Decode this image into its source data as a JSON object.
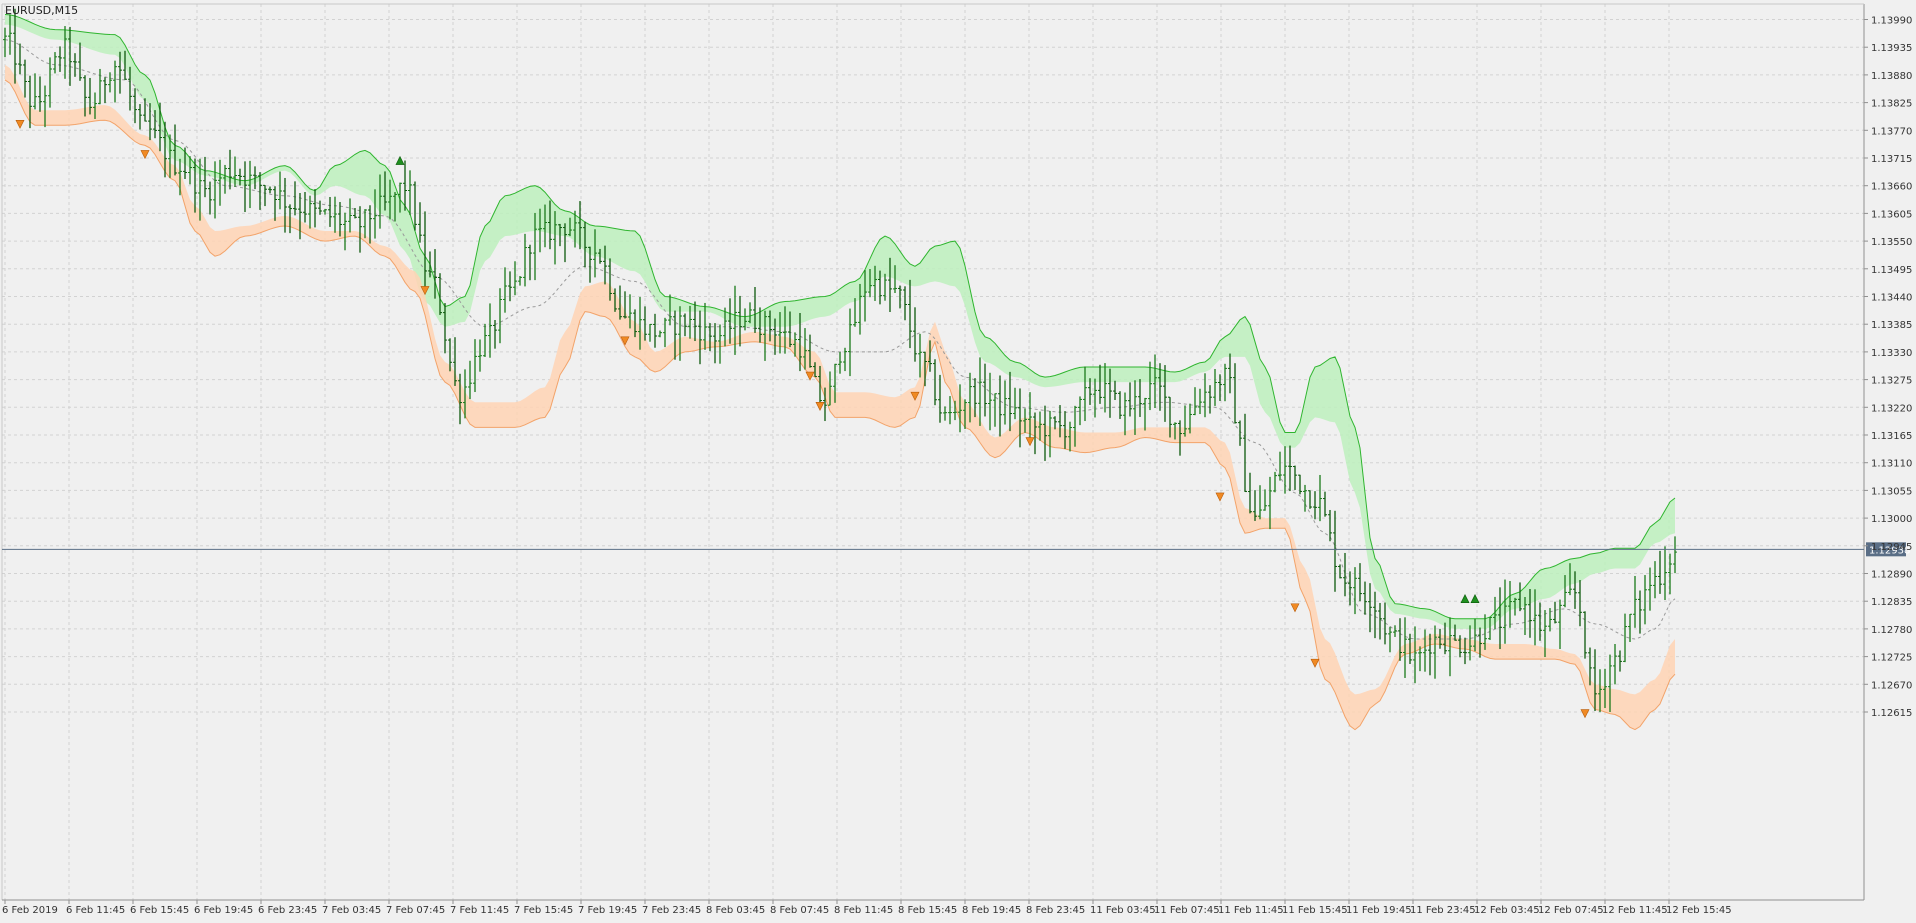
{
  "chart_data": {
    "type": "ohlc",
    "title": "EURUSD,M15",
    "price_tag": "1.12938",
    "current_price": 1.12938,
    "ylim": [
      1.1258,
      1.1401
    ],
    "y_ticks": [
      "1.13990",
      "1.13935",
      "1.13880",
      "1.13825",
      "1.13770",
      "1.13715",
      "1.13660",
      "1.13605",
      "1.13550",
      "1.13495",
      "1.13440",
      "1.13385",
      "1.13330",
      "1.13275",
      "1.13220",
      "1.13165",
      "1.13110",
      "1.13055",
      "1.13000",
      "1.12945",
      "1.12890",
      "1.12835",
      "1.12780",
      "1.12725",
      "1.12670",
      "1.12615"
    ],
    "x_ticks": [
      "6 Feb 2019",
      "6 Feb 11:45",
      "6 Feb 15:45",
      "6 Feb 19:45",
      "6 Feb 23:45",
      "7 Feb 03:45",
      "7 Feb 07:45",
      "7 Feb 11:45",
      "7 Feb 15:45",
      "7 Feb 19:45",
      "7 Feb 23:45",
      "8 Feb 03:45",
      "8 Feb 07:45",
      "8 Feb 11:45",
      "8 Feb 15:45",
      "8 Feb 19:45",
      "8 Feb 23:45",
      "11 Feb 03:45",
      "11 Feb 07:45",
      "11 Feb 11:45",
      "11 Feb 15:45",
      "11 Feb 19:45",
      "11 Feb 23:45",
      "12 Feb 03:45",
      "12 Feb 07:45",
      "12 Feb 11:45",
      "12 Feb 15:45"
    ],
    "bars_per_label": 16,
    "grid": true,
    "close_anchors": [
      [
        0,
        1.1395
      ],
      [
        6,
        1.1382
      ],
      [
        12,
        1.1393
      ],
      [
        17,
        1.1382
      ],
      [
        22,
        1.139
      ],
      [
        28,
        1.1377
      ],
      [
        35,
        1.137
      ],
      [
        40,
        1.1365
      ],
      [
        45,
        1.1369
      ],
      [
        52,
        1.1366
      ],
      [
        58,
        1.1362
      ],
      [
        64,
        1.136
      ],
      [
        70,
        1.1358
      ],
      [
        76,
        1.1362
      ],
      [
        80,
        1.1366
      ],
      [
        85,
        1.1348
      ],
      [
        91,
        1.1325
      ],
      [
        96,
        1.1335
      ],
      [
        101,
        1.1345
      ],
      [
        106,
        1.1356
      ],
      [
        112,
        1.1358
      ],
      [
        118,
        1.1353
      ],
      [
        124,
        1.134
      ],
      [
        130,
        1.1337
      ],
      [
        136,
        1.1339
      ],
      [
        142,
        1.1336
      ],
      [
        148,
        1.134
      ],
      [
        153,
        1.1338
      ],
      [
        158,
        1.1335
      ],
      [
        164,
        1.1323
      ],
      [
        168,
        1.1335
      ],
      [
        173,
        1.1347
      ],
      [
        178,
        1.1345
      ],
      [
        184,
        1.133
      ],
      [
        188,
        1.132
      ],
      [
        194,
        1.1325
      ],
      [
        200,
        1.1322
      ],
      [
        206,
        1.1318
      ],
      [
        212,
        1.1318
      ],
      [
        218,
        1.1326
      ],
      [
        224,
        1.1322
      ],
      [
        230,
        1.1326
      ],
      [
        235,
        1.1318
      ],
      [
        240,
        1.1325
      ],
      [
        244,
        1.1328
      ],
      [
        250,
        1.13
      ],
      [
        256,
        1.131
      ],
      [
        262,
        1.1304
      ],
      [
        268,
        1.1288
      ],
      [
        272,
        1.1285
      ],
      [
        278,
        1.1276
      ],
      [
        282,
        1.1272
      ],
      [
        286,
        1.1276
      ],
      [
        292,
        1.1275
      ],
      [
        298,
        1.1279
      ],
      [
        303,
        1.1283
      ],
      [
        308,
        1.1278
      ],
      [
        314,
        1.1285
      ],
      [
        318,
        1.1265
      ],
      [
        322,
        1.1272
      ],
      [
        326,
        1.1282
      ],
      [
        330,
        1.1288
      ],
      [
        334,
        1.1293
      ]
    ],
    "upper_band_anchors": [
      [
        0,
        1.14
      ],
      [
        10,
        1.1397
      ],
      [
        22,
        1.1396
      ],
      [
        28,
        1.1388
      ],
      [
        34,
        1.1374
      ],
      [
        40,
        1.1369
      ],
      [
        48,
        1.1367
      ],
      [
        56,
        1.137
      ],
      [
        62,
        1.1365
      ],
      [
        66,
        1.137
      ],
      [
        72,
        1.1373
      ],
      [
        76,
        1.137
      ],
      [
        80,
        1.1362
      ],
      [
        84,
        1.1352
      ],
      [
        88,
        1.1342
      ],
      [
        92,
        1.1344
      ],
      [
        96,
        1.1358
      ],
      [
        100,
        1.1364
      ],
      [
        106,
        1.1366
      ],
      [
        112,
        1.1361
      ],
      [
        118,
        1.1358
      ],
      [
        126,
        1.1357
      ],
      [
        132,
        1.1344
      ],
      [
        140,
        1.1342
      ],
      [
        148,
        1.134
      ],
      [
        156,
        1.1343
      ],
      [
        164,
        1.1344
      ],
      [
        170,
        1.1347
      ],
      [
        176,
        1.1356
      ],
      [
        182,
        1.135
      ],
      [
        186,
        1.1354
      ],
      [
        190,
        1.1355
      ],
      [
        196,
        1.1336
      ],
      [
        202,
        1.1331
      ],
      [
        208,
        1.1328
      ],
      [
        216,
        1.133
      ],
      [
        222,
        1.133
      ],
      [
        228,
        1.133
      ],
      [
        234,
        1.1329
      ],
      [
        240,
        1.1331
      ],
      [
        244,
        1.1336
      ],
      [
        248,
        1.134
      ],
      [
        252,
        1.133
      ],
      [
        256,
        1.1317
      ],
      [
        258,
        1.1317
      ],
      [
        262,
        1.133
      ],
      [
        266,
        1.1332
      ],
      [
        270,
        1.1318
      ],
      [
        274,
        1.1292
      ],
      [
        278,
        1.1283
      ],
      [
        284,
        1.1282
      ],
      [
        290,
        1.128
      ],
      [
        296,
        1.128
      ],
      [
        302,
        1.1285
      ],
      [
        308,
        1.129
      ],
      [
        314,
        1.1292
      ],
      [
        318,
        1.1293
      ],
      [
        322,
        1.1294
      ],
      [
        326,
        1.1294
      ],
      [
        330,
        1.1299
      ],
      [
        334,
        1.1304
      ]
    ],
    "upper_band_inner_anchors": [
      [
        0,
        1.1398
      ],
      [
        10,
        1.1395
      ],
      [
        22,
        1.1392
      ],
      [
        28,
        1.1383
      ],
      [
        34,
        1.1371
      ],
      [
        40,
        1.1368
      ],
      [
        48,
        1.1366
      ],
      [
        56,
        1.1369
      ],
      [
        62,
        1.1364
      ],
      [
        66,
        1.1366
      ],
      [
        72,
        1.1364
      ],
      [
        76,
        1.136
      ],
      [
        80,
        1.1353
      ],
      [
        84,
        1.1343
      ],
      [
        88,
        1.1338
      ],
      [
        92,
        1.1339
      ],
      [
        96,
        1.1351
      ],
      [
        100,
        1.1356
      ],
      [
        106,
        1.1357
      ],
      [
        112,
        1.1356
      ],
      [
        118,
        1.1352
      ],
      [
        126,
        1.1349
      ],
      [
        132,
        1.1341
      ],
      [
        140,
        1.1341
      ],
      [
        148,
        1.1338
      ],
      [
        156,
        1.1338
      ],
      [
        164,
        1.134
      ],
      [
        170,
        1.1343
      ],
      [
        176,
        1.1348
      ],
      [
        182,
        1.1346
      ],
      [
        186,
        1.1347
      ],
      [
        190,
        1.1346
      ],
      [
        196,
        1.1331
      ],
      [
        202,
        1.1328
      ],
      [
        208,
        1.1326
      ],
      [
        216,
        1.1327
      ],
      [
        222,
        1.1327
      ],
      [
        228,
        1.1327
      ],
      [
        234,
        1.1327
      ],
      [
        240,
        1.1329
      ],
      [
        244,
        1.1332
      ],
      [
        248,
        1.1332
      ],
      [
        252,
        1.1321
      ],
      [
        256,
        1.1314
      ],
      [
        258,
        1.1314
      ],
      [
        262,
        1.132
      ],
      [
        266,
        1.1319
      ],
      [
        270,
        1.1305
      ],
      [
        274,
        1.1286
      ],
      [
        278,
        1.1281
      ],
      [
        284,
        1.128
      ],
      [
        290,
        1.1278
      ],
      [
        296,
        1.1278
      ],
      [
        302,
        1.1282
      ],
      [
        308,
        1.1284
      ],
      [
        314,
        1.1287
      ],
      [
        318,
        1.1289
      ],
      [
        322,
        1.129
      ],
      [
        326,
        1.129
      ],
      [
        330,
        1.1295
      ],
      [
        334,
        1.1297
      ]
    ],
    "lower_band_anchors": [
      [
        0,
        1.1387
      ],
      [
        6,
        1.1378
      ],
      [
        12,
        1.1378
      ],
      [
        20,
        1.1379
      ],
      [
        28,
        1.1374
      ],
      [
        34,
        1.1367
      ],
      [
        38,
        1.1357
      ],
      [
        42,
        1.1352
      ],
      [
        48,
        1.1356
      ],
      [
        56,
        1.1358
      ],
      [
        64,
        1.1355
      ],
      [
        70,
        1.1356
      ],
      [
        76,
        1.1352
      ],
      [
        82,
        1.1345
      ],
      [
        88,
        1.1327
      ],
      [
        94,
        1.1318
      ],
      [
        102,
        1.1318
      ],
      [
        108,
        1.132
      ],
      [
        112,
        1.133
      ],
      [
        116,
        1.1341
      ],
      [
        120,
        1.134
      ],
      [
        126,
        1.1332
      ],
      [
        130,
        1.1329
      ],
      [
        136,
        1.1333
      ],
      [
        142,
        1.1334
      ],
      [
        150,
        1.1335
      ],
      [
        156,
        1.1334
      ],
      [
        162,
        1.1328
      ],
      [
        166,
        1.132
      ],
      [
        172,
        1.132
      ],
      [
        178,
        1.1318
      ],
      [
        182,
        1.132
      ],
      [
        186,
        1.1335
      ],
      [
        188,
        1.1327
      ],
      [
        192,
        1.1318
      ],
      [
        198,
        1.1312
      ],
      [
        204,
        1.1317
      ],
      [
        210,
        1.1314
      ],
      [
        216,
        1.1313
      ],
      [
        222,
        1.1314
      ],
      [
        228,
        1.1316
      ],
      [
        234,
        1.1315
      ],
      [
        240,
        1.1315
      ],
      [
        244,
        1.131
      ],
      [
        248,
        1.1297
      ],
      [
        252,
        1.1298
      ],
      [
        256,
        1.1298
      ],
      [
        260,
        1.1284
      ],
      [
        264,
        1.1268
      ],
      [
        270,
        1.1258
      ],
      [
        274,
        1.1263
      ],
      [
        280,
        1.1273
      ],
      [
        286,
        1.1275
      ],
      [
        292,
        1.1274
      ],
      [
        298,
        1.1272
      ],
      [
        304,
        1.1272
      ],
      [
        310,
        1.1272
      ],
      [
        314,
        1.1271
      ],
      [
        318,
        1.1262
      ],
      [
        322,
        1.1261
      ],
      [
        326,
        1.1258
      ],
      [
        330,
        1.1262
      ],
      [
        334,
        1.1269
      ]
    ],
    "lower_band_inner_anchors": [
      [
        0,
        1.139
      ],
      [
        6,
        1.1381
      ],
      [
        12,
        1.1381
      ],
      [
        20,
        1.1382
      ],
      [
        28,
        1.1376
      ],
      [
        34,
        1.137
      ],
      [
        38,
        1.1362
      ],
      [
        42,
        1.1357
      ],
      [
        48,
        1.1358
      ],
      [
        56,
        1.136
      ],
      [
        64,
        1.1357
      ],
      [
        70,
        1.1357
      ],
      [
        76,
        1.1354
      ],
      [
        82,
        1.1349
      ],
      [
        88,
        1.1331
      ],
      [
        94,
        1.1323
      ],
      [
        102,
        1.1323
      ],
      [
        108,
        1.1326
      ],
      [
        112,
        1.1337
      ],
      [
        116,
        1.1346
      ],
      [
        120,
        1.1347
      ],
      [
        126,
        1.1339
      ],
      [
        130,
        1.1333
      ],
      [
        136,
        1.1336
      ],
      [
        142,
        1.1335
      ],
      [
        150,
        1.1337
      ],
      [
        156,
        1.1336
      ],
      [
        162,
        1.1333
      ],
      [
        166,
        1.1325
      ],
      [
        172,
        1.1325
      ],
      [
        178,
        1.1324
      ],
      [
        182,
        1.1326
      ],
      [
        186,
        1.1339
      ],
      [
        188,
        1.1333
      ],
      [
        192,
        1.1323
      ],
      [
        198,
        1.1316
      ],
      [
        204,
        1.132
      ],
      [
        210,
        1.1318
      ],
      [
        216,
        1.1317
      ],
      [
        222,
        1.1317
      ],
      [
        228,
        1.1318
      ],
      [
        234,
        1.1318
      ],
      [
        240,
        1.1318
      ],
      [
        244,
        1.1315
      ],
      [
        248,
        1.1302
      ],
      [
        252,
        1.13
      ],
      [
        256,
        1.13
      ],
      [
        260,
        1.129
      ],
      [
        264,
        1.1276
      ],
      [
        270,
        1.1265
      ],
      [
        274,
        1.1266
      ],
      [
        280,
        1.1275
      ],
      [
        286,
        1.1277
      ],
      [
        292,
        1.1276
      ],
      [
        298,
        1.1275
      ],
      [
        304,
        1.1275
      ],
      [
        310,
        1.1274
      ],
      [
        314,
        1.1273
      ],
      [
        318,
        1.1267
      ],
      [
        322,
        1.1266
      ],
      [
        326,
        1.1265
      ],
      [
        330,
        1.1268
      ],
      [
        334,
        1.1276
      ]
    ],
    "midline_anchors": [
      [
        0,
        1.1395
      ],
      [
        10,
        1.139
      ],
      [
        24,
        1.1387
      ],
      [
        34,
        1.1375
      ],
      [
        44,
        1.1366
      ],
      [
        56,
        1.1364
      ],
      [
        66,
        1.1362
      ],
      [
        76,
        1.136
      ],
      [
        86,
        1.1348
      ],
      [
        96,
        1.1338
      ],
      [
        106,
        1.1342
      ],
      [
        116,
        1.135
      ],
      [
        126,
        1.1347
      ],
      [
        136,
        1.1338
      ],
      [
        146,
        1.1338
      ],
      [
        156,
        1.1337
      ],
      [
        166,
        1.1333
      ],
      [
        176,
        1.1333
      ],
      [
        184,
        1.1337
      ],
      [
        192,
        1.1328
      ],
      [
        202,
        1.1322
      ],
      [
        212,
        1.1321
      ],
      [
        222,
        1.1322
      ],
      [
        232,
        1.1323
      ],
      [
        242,
        1.1322
      ],
      [
        250,
        1.1315
      ],
      [
        258,
        1.1305
      ],
      [
        264,
        1.1297
      ],
      [
        272,
        1.1281
      ],
      [
        282,
        1.1276
      ],
      [
        292,
        1.1276
      ],
      [
        302,
        1.1279
      ],
      [
        312,
        1.1282
      ],
      [
        318,
        1.1279
      ],
      [
        326,
        1.1276
      ],
      [
        330,
        1.1278
      ],
      [
        334,
        1.1284
      ]
    ],
    "down_arrows": [
      [
        3,
        1.1378
      ],
      [
        28,
        1.1372
      ],
      [
        84,
        1.1345
      ],
      [
        124,
        1.1335
      ],
      [
        161,
        1.1328
      ],
      [
        163,
        1.1322
      ],
      [
        182,
        1.1324
      ],
      [
        205,
        1.1315
      ],
      [
        243,
        1.1304
      ],
      [
        258,
        1.1282
      ],
      [
        262,
        1.1271
      ],
      [
        316,
        1.1261
      ]
    ],
    "up_arrows": [
      [
        79,
        1.1371
      ],
      [
        292,
        1.1284
      ],
      [
        294,
        1.1284
      ]
    ]
  }
}
